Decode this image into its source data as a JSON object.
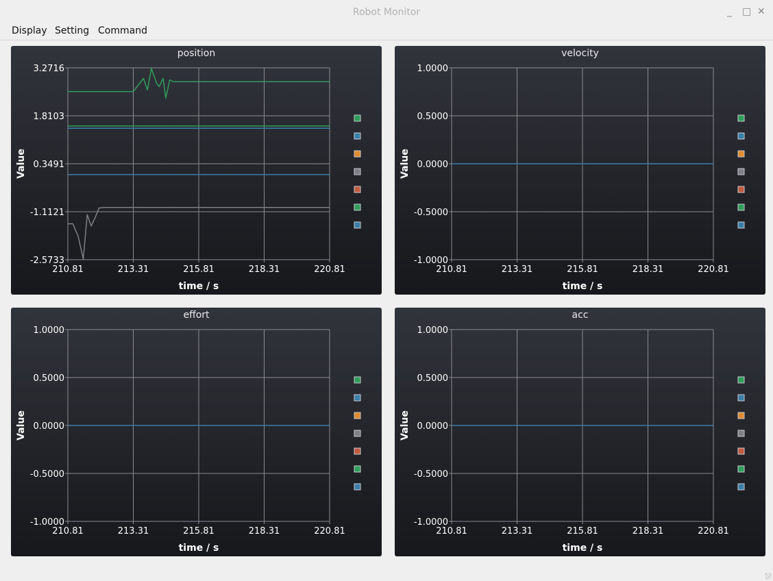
{
  "window": {
    "title": "Robot Monitor",
    "minimize_glyph": "_",
    "maximize_glyph": "□",
    "close_glyph": "✕"
  },
  "menu": {
    "items": [
      "Display",
      "Setting",
      "Command"
    ]
  },
  "legend_colors": [
    "#2e9e5b",
    "#3a7eaa",
    "#e08b2d",
    "#7c7f86",
    "#c15a40",
    "#2e9e5b",
    "#3a7eaa"
  ],
  "chart_data": [
    {
      "type": "line",
      "title": "position",
      "xlabel": "time / s",
      "ylabel": "Value",
      "xlim": [
        210.81,
        220.81
      ],
      "ylim": [
        -2.5733,
        3.2716
      ],
      "xticks": [
        "210.81",
        "213.31",
        "215.81",
        "218.31",
        "220.81"
      ],
      "yticks": [
        "3.2716",
        "1.8103",
        "0.3491",
        "-1.1121",
        "-2.5733"
      ],
      "grid": true,
      "legend_position": "right",
      "series": [
        {
          "color": "#2e9e5b",
          "x": [
            210.81,
            213.31,
            213.5,
            213.7,
            213.85,
            214.0,
            214.2,
            214.3,
            214.45,
            214.55,
            214.7,
            214.85,
            215.0,
            220.81
          ],
          "y": [
            2.55,
            2.55,
            2.75,
            2.95,
            2.6,
            3.25,
            2.8,
            2.7,
            2.95,
            2.35,
            2.9,
            2.85,
            2.85,
            2.85
          ]
        },
        {
          "color": "#2e9e5b",
          "x": [
            210.81,
            220.81
          ],
          "y": [
            1.5,
            1.5
          ]
        },
        {
          "color": "#3a7eaa",
          "x": [
            210.81,
            220.81
          ],
          "y": [
            1.43,
            1.43
          ]
        },
        {
          "color": "#3a7eaa",
          "x": [
            210.81,
            220.81
          ],
          "y": [
            0.02,
            0.02
          ]
        },
        {
          "color": "#7c7f86",
          "x": [
            210.81,
            211.0,
            211.2,
            211.4,
            211.55,
            211.7,
            211.85,
            212.0,
            212.2,
            220.81
          ],
          "y": [
            -1.48,
            -1.48,
            -1.85,
            -2.55,
            -1.2,
            -1.55,
            -1.3,
            -1.0,
            -0.98,
            -0.98
          ]
        }
      ]
    },
    {
      "type": "line",
      "title": "velocity",
      "xlabel": "time / s",
      "ylabel": "Value",
      "xlim": [
        210.81,
        220.81
      ],
      "ylim": [
        -1.0,
        1.0
      ],
      "xticks": [
        "210.81",
        "213.31",
        "215.81",
        "218.31",
        "220.81"
      ],
      "yticks": [
        "1.0000",
        "0.5000",
        "0.0000",
        "-0.5000",
        "-1.0000"
      ],
      "grid": true,
      "legend_position": "right",
      "series": [
        {
          "color": "#3a7eaa",
          "x": [
            210.81,
            220.81
          ],
          "y": [
            0,
            0
          ]
        }
      ]
    },
    {
      "type": "line",
      "title": "effort",
      "xlabel": "time / s",
      "ylabel": "Value",
      "xlim": [
        210.81,
        220.81
      ],
      "ylim": [
        -1.0,
        1.0
      ],
      "xticks": [
        "210.81",
        "213.31",
        "215.81",
        "218.31",
        "220.81"
      ],
      "yticks": [
        "1.0000",
        "0.5000",
        "0.0000",
        "-0.5000",
        "-1.0000"
      ],
      "grid": true,
      "legend_position": "right",
      "series": [
        {
          "color": "#3a7eaa",
          "x": [
            210.81,
            220.81
          ],
          "y": [
            0,
            0
          ]
        }
      ]
    },
    {
      "type": "line",
      "title": "acc",
      "xlabel": "time / s",
      "ylabel": "Value",
      "xlim": [
        210.81,
        220.81
      ],
      "ylim": [
        -1.0,
        1.0
      ],
      "xticks": [
        "210.81",
        "213.31",
        "215.81",
        "218.31",
        "220.81"
      ],
      "yticks": [
        "1.0000",
        "0.5000",
        "0.0000",
        "-0.5000",
        "-1.0000"
      ],
      "grid": true,
      "legend_position": "right",
      "series": [
        {
          "color": "#3a7eaa",
          "x": [
            210.81,
            220.81
          ],
          "y": [
            0,
            0
          ]
        }
      ]
    }
  ]
}
